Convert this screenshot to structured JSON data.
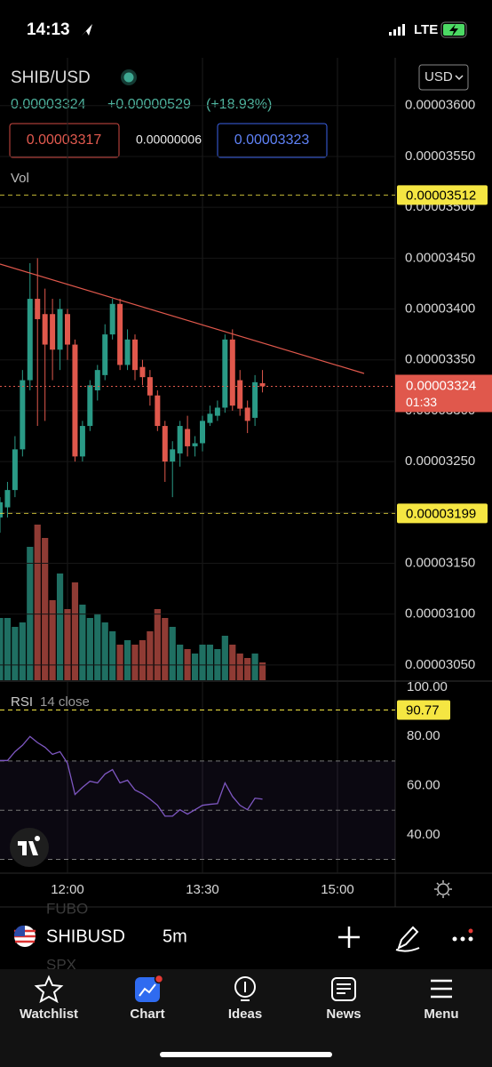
{
  "status_bar": {
    "time": "14:13",
    "network": "LTE"
  },
  "header": {
    "symbol": "SHIB/USD",
    "currency": "USD",
    "price": "0.00003324",
    "change": "+0.00000529",
    "change_percent": "(+18.93%)",
    "bid": "0.00003317",
    "spread": "0.00000006",
    "ask": "0.00003323"
  },
  "chart_data": [
    {
      "type": "candlestick",
      "categories": [
        null,
        null,
        null,
        null,
        null,
        null,
        null,
        null,
        null,
        "12:00",
        null,
        null,
        null,
        null,
        null,
        null,
        null,
        null,
        null,
        null,
        null,
        null,
        null,
        null,
        null,
        null,
        null,
        "13:30",
        null,
        null,
        null,
        null,
        null,
        null,
        null,
        null,
        null,
        null,
        null,
        null,
        null,
        null,
        null,
        null,
        null,
        "15:00"
      ],
      "open": [
        3.195e-05,
        3.205e-05,
        3.222e-05,
        3.262e-05,
        3.33e-05,
        3.41e-05,
        3.395e-05,
        3.395e-05,
        3.36e-05,
        3.395e-05,
        3.365e-05,
        3.255e-05,
        3.285e-05,
        3.32e-05,
        3.335e-05,
        3.375e-05,
        3.405e-05,
        3.345e-05,
        3.37e-05,
        3.343e-05,
        3.333e-05,
        3.315e-05,
        3.285e-05,
        3.25e-05,
        3.258e-05,
        3.282e-05,
        3.265e-05,
        3.268e-05,
        3.288e-05,
        3.295e-05,
        3.303e-05,
        3.37e-05,
        3.33e-05,
        3.303e-05,
        3.293e-05,
        3.327e-05,
        null,
        null,
        null,
        null,
        null,
        null,
        null,
        null,
        null,
        null
      ],
      "high": [
        3.215e-05,
        3.23e-05,
        3.275e-05,
        3.34e-05,
        3.445e-05,
        3.45e-05,
        3.42e-05,
        3.41e-05,
        3.41e-05,
        3.4e-05,
        3.37e-05,
        3.29e-05,
        3.33e-05,
        3.345e-05,
        3.385e-05,
        3.41e-05,
        3.41e-05,
        3.38e-05,
        3.375e-05,
        3.35e-05,
        3.34e-05,
        3.32e-05,
        3.29e-05,
        3.27e-05,
        3.29e-05,
        3.295e-05,
        3.275e-05,
        3.295e-05,
        3.305e-05,
        3.31e-05,
        3.375e-05,
        3.38e-05,
        3.34e-05,
        3.31e-05,
        3.335e-05,
        3.34e-05,
        null,
        null,
        null,
        null,
        null,
        null,
        null,
        null,
        null,
        null
      ],
      "low": [
        3.18e-05,
        3.195e-05,
        3.215e-05,
        3.255e-05,
        3.32e-05,
        3.285e-05,
        3.29e-05,
        3.33e-05,
        3.34e-05,
        3.35e-05,
        3.25e-05,
        3.25e-05,
        3.28e-05,
        3.31e-05,
        3.33e-05,
        3.37e-05,
        3.34e-05,
        3.34e-05,
        3.33e-05,
        3.325e-05,
        3.305e-05,
        3.28e-05,
        3.23e-05,
        3.215e-05,
        3.245e-05,
        3.255e-05,
        3.255e-05,
        3.26e-05,
        3.285e-05,
        3.29e-05,
        3.298e-05,
        3.3e-05,
        3.295e-05,
        3.278e-05,
        3.285e-05,
        3.318e-05,
        null,
        null,
        null,
        null,
        null,
        null,
        null,
        null,
        null,
        null
      ],
      "close": [
        3.21e-05,
        3.222e-05,
        3.262e-05,
        3.33e-05,
        3.41e-05,
        3.39e-05,
        3.365e-05,
        3.36e-05,
        3.4e-05,
        3.365e-05,
        3.255e-05,
        3.285e-05,
        3.325e-05,
        3.34e-05,
        3.375e-05,
        3.405e-05,
        3.345e-05,
        3.37e-05,
        3.34e-05,
        3.333e-05,
        3.315e-05,
        3.285e-05,
        3.25e-05,
        3.262e-05,
        3.285e-05,
        3.265e-05,
        3.268e-05,
        3.29e-05,
        3.297e-05,
        3.303e-05,
        3.37e-05,
        3.305e-05,
        3.302e-05,
        3.29e-05,
        3.328e-05,
        3.324e-05,
        null,
        null,
        null,
        null,
        null,
        null,
        null,
        null,
        null,
        null
      ],
      "up_color": "#2a9a86",
      "down_color": "#e0584c",
      "ylim": [
        3.035e-05,
        3.647e-05
      ],
      "yticks": [
        {
          "value": 3.6e-05,
          "label": "0.00003600"
        },
        {
          "value": 3.55e-05,
          "label": "0.00003550"
        },
        {
          "value": 3.5e-05,
          "label": "0.00003500"
        },
        {
          "value": 3.45e-05,
          "label": "0.00003450"
        },
        {
          "value": 3.4e-05,
          "label": "0.00003400"
        },
        {
          "value": 3.35e-05,
          "label": "0.00003350"
        },
        {
          "value": 3.3e-05,
          "label": "0.00003300"
        },
        {
          "value": 3.25e-05,
          "label": "0.00003250"
        },
        {
          "value": 3.2e-05,
          "label": "0.00003200"
        },
        {
          "value": 3.15e-05,
          "label": "0.00003150"
        },
        {
          "value": 3.1e-05,
          "label": "0.00003100"
        },
        {
          "value": 3.05e-05,
          "label": "0.00003050"
        }
      ],
      "grid": true,
      "price_lines": [
        {
          "value": 3.512e-05,
          "label": "0.00003512",
          "color": "#f5e642"
        },
        {
          "value": 3.199e-05,
          "label": "0.00003199",
          "color": "#f5e642"
        }
      ],
      "last_price": {
        "value": 3.324e-05,
        "label": "0.00003324",
        "countdown": "01:33",
        "color": "#e0584c"
      }
    },
    {
      "type": "bar",
      "title": "Vol",
      "values": [
        70,
        70,
        60,
        65,
        150,
        175,
        160,
        90,
        120,
        80,
        110,
        85,
        70,
        75,
        65,
        55,
        40,
        45,
        40,
        45,
        55,
        80,
        70,
        60,
        40,
        35,
        30,
        40,
        40,
        35,
        50,
        40,
        30,
        25,
        30,
        20,
        null,
        null,
        null,
        null,
        null,
        null,
        null,
        null,
        null,
        null
      ],
      "up_color": "#1f6f62",
      "down_color": "#8f3b34",
      "ylim": [
        0,
        700
      ]
    },
    {
      "type": "line",
      "title": "RSI",
      "subtitle": "14 close",
      "values": [
        70.2,
        70.2,
        73.8,
        76.4,
        80,
        77.5,
        75.6,
        72.7,
        73.8,
        69.1,
        56.4,
        59.3,
        61.8,
        61.1,
        64.7,
        66.5,
        61.1,
        62.2,
        58.2,
        56.7,
        54.5,
        52,
        47.6,
        47.6,
        50.2,
        48.4,
        50.2,
        52,
        52.4,
        52.7,
        61.1,
        55.6,
        52,
        50.2,
        54.9,
        54.5,
        null,
        null,
        null,
        null,
        null,
        null,
        null,
        null,
        null,
        null
      ],
      "color": "#7e57c2",
      "ylim": [
        24.4,
        102.5
      ],
      "yticks": [
        {
          "value": 100,
          "label": "100.00"
        },
        {
          "value": 80,
          "label": "80.00"
        },
        {
          "value": 60,
          "label": "60.00"
        },
        {
          "value": 40,
          "label": "40.00"
        }
      ],
      "band": [
        30,
        70
      ],
      "midline": 50,
      "alert_line": 90.77,
      "alert_color": "#f5e642"
    }
  ],
  "toolbar": {
    "symbol": "SHIBUSD",
    "interval": "5m",
    "watchlist_above": "FUBO",
    "watchlist_below": "SPX"
  },
  "tabs": [
    "Watchlist",
    "Chart",
    "Ideas",
    "News",
    "Menu"
  ]
}
